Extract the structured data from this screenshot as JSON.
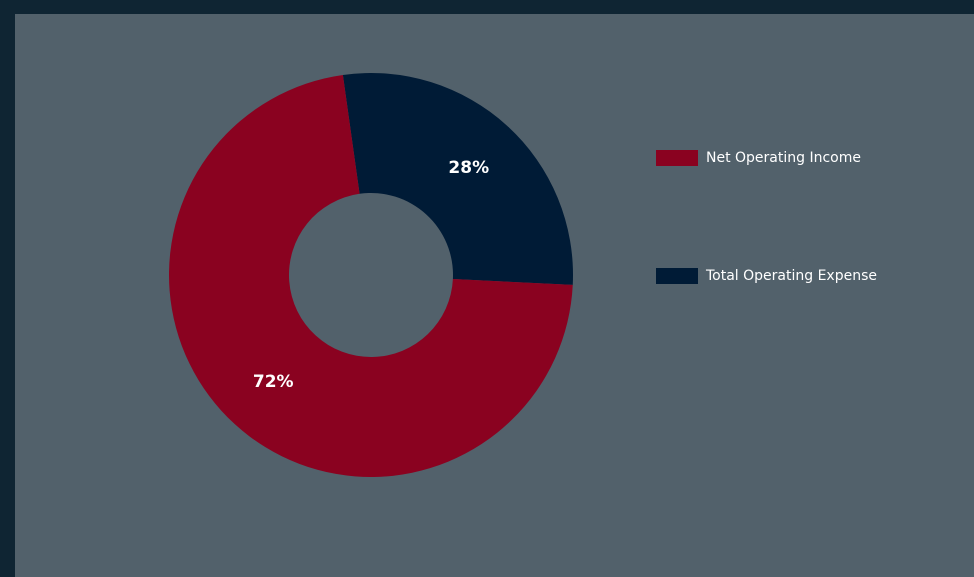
{
  "chart_data": {
    "type": "pie",
    "donut": true,
    "slices": [
      {
        "name": "Total Operating Expense",
        "value": 28,
        "label": "28%",
        "color": "#001b36"
      },
      {
        "name": "Net Operating Income",
        "value": 72,
        "label": "72%",
        "color": "#8a0220"
      }
    ],
    "legend": {
      "placement": "right",
      "items": [
        {
          "name": "Net Operating Income",
          "color": "#8a0220"
        },
        {
          "name": "Total Operating Expense",
          "color": "#001b36"
        }
      ]
    }
  },
  "colors": {
    "page_border": "#0f2533",
    "panel_background": "#52616b"
  }
}
